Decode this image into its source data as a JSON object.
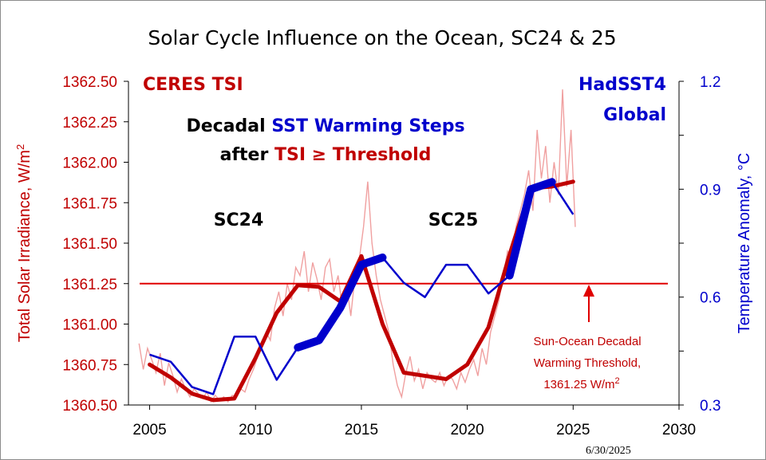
{
  "chart_data": {
    "type": "line",
    "title": "Solar Cycle Influence on the Ocean, SC24 & 25",
    "ylabel_left": "Total Solar Irradiance, W/m",
    "ylabel_left_sup": "2",
    "ylabel_right": "Temperature Anomaly, °C",
    "xlim": [
      2004,
      2030
    ],
    "ylim_left": [
      1360.5,
      1362.5
    ],
    "ylim_right": [
      0.3,
      1.2
    ],
    "x_ticks": [
      "2005",
      "2010",
      "2015",
      "2020",
      "2025",
      "2030"
    ],
    "y_left_ticks": [
      "1362.50",
      "1362.25",
      "1362.00",
      "1361.75",
      "1361.50",
      "1361.25",
      "1361.00",
      "1360.75",
      "1360.50"
    ],
    "y_right_ticks": [
      "1.2",
      "0.9",
      "0.6",
      "0.3"
    ],
    "threshold": 1361.25,
    "annotations": {
      "tsi_label": "CERES TSI",
      "sst_label_1": "HadSST4",
      "sst_label_2": "Global",
      "steps_line1_a": "Decadal ",
      "steps_line1_b": "SST Warming Steps",
      "steps_line2_a": "after ",
      "steps_line2_b": "TSI ≥ Threshold",
      "sc24": "SC24",
      "sc25": "SC25",
      "threshold_line1": "Sun-Ocean Decadal",
      "threshold_line2": "Warming Threshold,",
      "threshold_line3": "1361.25 W/m",
      "threshold_line3_sup": "2",
      "date": "6/30/2025"
    },
    "colors": {
      "tsi": "#c00000",
      "tsi_monthly": "#f0a0a0",
      "sst": "#0000cc",
      "threshold": "#e00000"
    },
    "series": [
      {
        "name": "CERES TSI",
        "axis": "left",
        "x": [
          2005,
          2006,
          2007,
          2008,
          2009,
          2010,
          2011,
          2012,
          2013,
          2014,
          2015,
          2016,
          2017,
          2018,
          2019,
          2020,
          2021,
          2022,
          2023,
          2024,
          2025
        ],
        "y": [
          1360.75,
          1360.67,
          1360.57,
          1360.53,
          1360.54,
          1360.79,
          1361.07,
          1361.24,
          1361.23,
          1361.14,
          1361.42,
          1361.0,
          1360.7,
          1360.68,
          1360.66,
          1360.75,
          1360.98,
          1361.43,
          1361.84,
          1361.85,
          1361.88
        ]
      },
      {
        "name": "HadSST4 Global",
        "axis": "right",
        "x": [
          2005,
          2006,
          2007,
          2008,
          2009,
          2010,
          2011,
          2012,
          2013,
          2014,
          2015,
          2016,
          2017,
          2018,
          2019,
          2020,
          2021,
          2022,
          2023,
          2024,
          2025
        ],
        "y": [
          0.44,
          0.42,
          0.35,
          0.33,
          0.49,
          0.49,
          0.37,
          0.46,
          0.48,
          0.57,
          0.69,
          0.71,
          0.64,
          0.6,
          0.69,
          0.69,
          0.61,
          0.66,
          0.9,
          0.92,
          0.83
        ]
      }
    ],
    "monthly_tsi": {
      "name": "CERES TSI monthly",
      "x": [
        2004.5,
        2004.7,
        2004.9,
        2005.1,
        2005.3,
        2005.5,
        2005.7,
        2005.9,
        2006.1,
        2006.3,
        2006.5,
        2006.7,
        2006.9,
        2007.1,
        2007.3,
        2007.5,
        2007.7,
        2007.9,
        2008.1,
        2008.3,
        2008.5,
        2008.7,
        2008.9,
        2009.1,
        2009.3,
        2009.5,
        2009.7,
        2009.9,
        2010.1,
        2010.3,
        2010.5,
        2010.7,
        2010.9,
        2011.1,
        2011.3,
        2011.5,
        2011.7,
        2011.9,
        2012.1,
        2012.3,
        2012.5,
        2012.7,
        2012.9,
        2013.1,
        2013.3,
        2013.5,
        2013.7,
        2013.9,
        2014.1,
        2014.3,
        2014.5,
        2014.7,
        2014.9,
        2015.1,
        2015.3,
        2015.5,
        2015.7,
        2015.9,
        2016.1,
        2016.3,
        2016.5,
        2016.7,
        2016.9,
        2017.1,
        2017.3,
        2017.5,
        2017.7,
        2017.9,
        2018.1,
        2018.3,
        2018.5,
        2018.7,
        2018.9,
        2019.1,
        2019.3,
        2019.5,
        2019.7,
        2019.9,
        2020.1,
        2020.3,
        2020.5,
        2020.7,
        2020.9,
        2021.1,
        2021.3,
        2021.5,
        2021.7,
        2021.9,
        2022.1,
        2022.3,
        2022.5,
        2022.7,
        2022.9,
        2023.1,
        2023.3,
        2023.5,
        2023.7,
        2023.9,
        2024.1,
        2024.3,
        2024.5,
        2024.7,
        2024.9,
        2025.1
      ],
      "y": [
        1360.88,
        1360.72,
        1360.85,
        1360.78,
        1360.7,
        1360.82,
        1360.62,
        1360.76,
        1360.68,
        1360.58,
        1360.66,
        1360.6,
        1360.55,
        1360.6,
        1360.57,
        1360.54,
        1360.58,
        1360.52,
        1360.56,
        1360.53,
        1360.55,
        1360.52,
        1360.56,
        1360.55,
        1360.6,
        1360.58,
        1360.66,
        1360.72,
        1360.8,
        1360.88,
        1360.95,
        1360.9,
        1361.1,
        1361.2,
        1361.05,
        1361.25,
        1361.15,
        1361.35,
        1361.3,
        1361.45,
        1361.2,
        1361.38,
        1361.28,
        1361.15,
        1361.35,
        1361.4,
        1361.2,
        1361.3,
        1361.1,
        1361.25,
        1361.05,
        1361.3,
        1361.4,
        1361.6,
        1361.88,
        1361.5,
        1361.3,
        1361.15,
        1361.05,
        1360.95,
        1360.75,
        1360.62,
        1360.55,
        1360.7,
        1360.8,
        1360.65,
        1360.72,
        1360.6,
        1360.7,
        1360.66,
        1360.64,
        1360.7,
        1360.62,
        1360.68,
        1360.66,
        1360.6,
        1360.7,
        1360.64,
        1360.72,
        1360.78,
        1360.68,
        1360.85,
        1360.75,
        1360.95,
        1361.05,
        1361.15,
        1361.3,
        1361.45,
        1361.4,
        1361.6,
        1361.7,
        1361.8,
        1361.95,
        1361.7,
        1362.2,
        1361.9,
        1362.1,
        1361.75,
        1362.0,
        1361.8,
        1362.45,
        1361.85,
        1362.2,
        1361.6
      ]
    }
  }
}
